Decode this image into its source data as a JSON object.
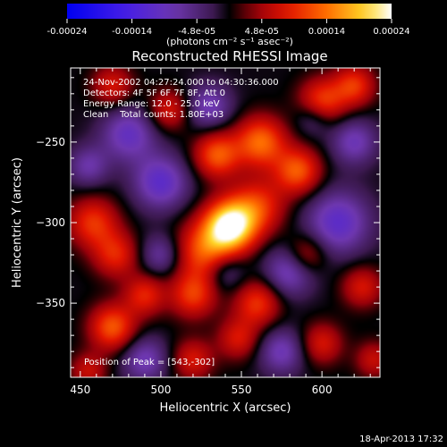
{
  "chart_data": {
    "type": "heatmap",
    "title": "Reconstructed RHESSI Image",
    "xlabel": "Heliocentric X (arcsec)",
    "ylabel": "Heliocentric Y (arcsec)",
    "xlim": [
      444,
      636
    ],
    "ylim": [
      -396,
      -204
    ],
    "x_ticks": [
      450,
      500,
      550,
      600
    ],
    "y_ticks": [
      -250,
      -300,
      -350
    ],
    "colorbar": {
      "ticks": [
        "-0.00024",
        "-0.00014",
        "-4.8e-05",
        "4.8e-05",
        "0.00014",
        "0.00024"
      ],
      "unit_line": "(photons cm⁻² s⁻¹ asec⁻²)",
      "range": [
        -0.00024,
        0.00024
      ]
    },
    "annotations": [
      "24-Nov-2002 04:27:24.000 to 04:30:36.000",
      "Detectors: 4F 5F 6F 7F 8F, Att 0",
      "Energy Range: 12.0 - 25.0 keV",
      "Clean    Total counts: 1.80E+03"
    ],
    "peak_label": "Position of Peak = [543,-302]",
    "peak": {
      "x": 543,
      "y": -302
    },
    "sources": [
      {
        "x": 543,
        "y": -302,
        "amp": 1.0,
        "sigma": 11
      },
      {
        "x": 528,
        "y": -318,
        "amp": 0.55,
        "sigma": 13
      },
      {
        "x": 560,
        "y": -290,
        "amp": 0.45,
        "sigma": 12
      },
      {
        "x": 535,
        "y": -258,
        "amp": 0.55,
        "sigma": 10
      },
      {
        "x": 562,
        "y": -250,
        "amp": 0.6,
        "sigma": 11
      },
      {
        "x": 585,
        "y": -268,
        "amp": 0.55,
        "sigma": 10
      },
      {
        "x": 600,
        "y": -225,
        "amp": 0.5,
        "sigma": 10
      },
      {
        "x": 620,
        "y": -215,
        "amp": 0.45,
        "sigma": 9
      },
      {
        "x": 505,
        "y": -230,
        "amp": 0.35,
        "sigma": 9
      },
      {
        "x": 470,
        "y": -215,
        "amp": 0.35,
        "sigma": 9
      },
      {
        "x": 458,
        "y": -300,
        "amp": 0.45,
        "sigma": 11
      },
      {
        "x": 472,
        "y": -320,
        "amp": 0.4,
        "sigma": 10
      },
      {
        "x": 470,
        "y": -365,
        "amp": 0.55,
        "sigma": 10
      },
      {
        "x": 490,
        "y": -345,
        "amp": 0.4,
        "sigma": 9
      },
      {
        "x": 520,
        "y": -345,
        "amp": 0.45,
        "sigma": 10
      },
      {
        "x": 560,
        "y": -350,
        "amp": 0.45,
        "sigma": 10
      },
      {
        "x": 548,
        "y": -372,
        "amp": 0.35,
        "sigma": 9
      },
      {
        "x": 520,
        "y": -385,
        "amp": 0.35,
        "sigma": 9
      },
      {
        "x": 590,
        "y": -320,
        "amp": 0.35,
        "sigma": 9
      },
      {
        "x": 600,
        "y": -375,
        "amp": 0.35,
        "sigma": 9
      },
      {
        "x": 625,
        "y": -340,
        "amp": 0.35,
        "sigma": 9
      },
      {
        "x": 632,
        "y": -385,
        "amp": 0.3,
        "sigma": 8
      },
      {
        "x": 455,
        "y": -392,
        "amp": 0.3,
        "sigma": 8
      },
      {
        "x": 500,
        "y": -275,
        "amp": -0.45,
        "sigma": 12
      },
      {
        "x": 480,
        "y": -245,
        "amp": -0.4,
        "sigma": 12
      },
      {
        "x": 530,
        "y": -228,
        "amp": -0.35,
        "sigma": 10
      },
      {
        "x": 610,
        "y": -300,
        "amp": -0.45,
        "sigma": 14
      },
      {
        "x": 620,
        "y": -250,
        "amp": -0.35,
        "sigma": 10
      },
      {
        "x": 580,
        "y": -330,
        "amp": -0.4,
        "sigma": 11
      },
      {
        "x": 500,
        "y": -320,
        "amp": -0.3,
        "sigma": 9
      },
      {
        "x": 540,
        "y": -330,
        "amp": -0.3,
        "sigma": 9
      },
      {
        "x": 575,
        "y": -380,
        "amp": -0.35,
        "sigma": 10
      },
      {
        "x": 490,
        "y": -385,
        "amp": -0.35,
        "sigma": 10
      },
      {
        "x": 455,
        "y": -265,
        "amp": -0.3,
        "sigma": 9
      },
      {
        "x": 595,
        "y": -235,
        "amp": -0.25,
        "sigma": 8
      }
    ],
    "grid": false
  },
  "footer_date": "18-Apr-2013 17:32"
}
